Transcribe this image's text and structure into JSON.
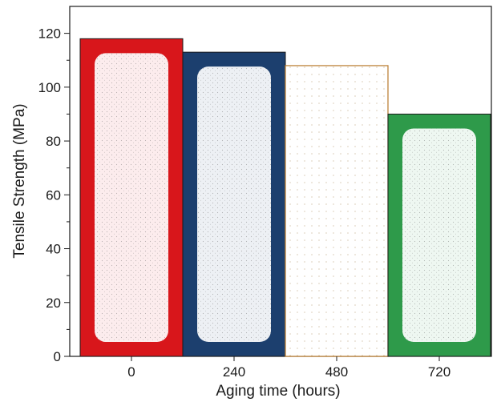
{
  "chart_data": {
    "type": "bar",
    "categories": [
      "0",
      "240",
      "480",
      "720"
    ],
    "values": [
      118,
      113,
      108,
      90
    ],
    "xlabel": "Aging time (hours)",
    "ylabel": "Tensile Strength (MPa)",
    "ylim": [
      0,
      130
    ],
    "yticks": [
      0,
      20,
      40,
      60,
      80,
      100,
      120
    ],
    "grid": false,
    "legend": "none",
    "bar_colors": [
      "#d8161b",
      "#1c3f6e",
      "#b8792a",
      "#2e9a4a"
    ],
    "bar_styles": [
      "speckled-frame",
      "speckled-frame",
      "outline-sparse",
      "speckled-frame"
    ]
  }
}
